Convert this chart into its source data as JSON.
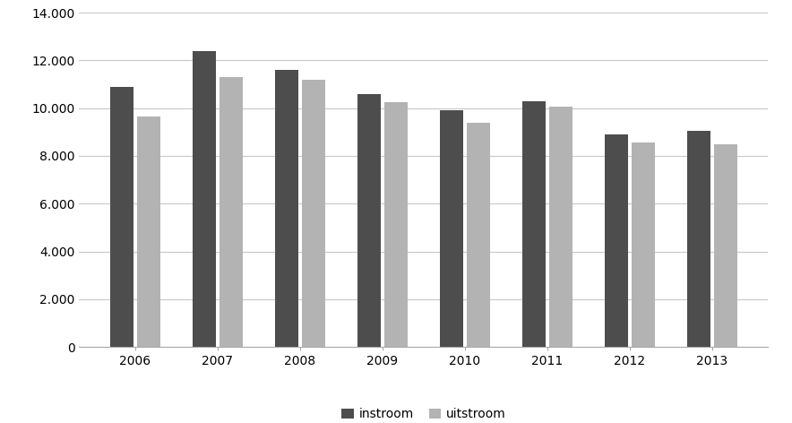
{
  "years": [
    "2006",
    "2007",
    "2008",
    "2009",
    "2010",
    "2011",
    "2012",
    "2013"
  ],
  "instroom": [
    10900,
    12400,
    11600,
    10600,
    9900,
    10300,
    8900,
    9050
  ],
  "uitstroom": [
    9650,
    11300,
    11200,
    10250,
    9400,
    10050,
    8550,
    8500
  ],
  "instroom_color": "#4d4d4d",
  "uitstroom_color": "#b3b3b3",
  "ylim": [
    0,
    14000
  ],
  "yticks": [
    0,
    2000,
    4000,
    6000,
    8000,
    10000,
    12000,
    14000
  ],
  "bar_width": 0.28,
  "legend_labels": [
    "instroom",
    "uitstroom"
  ],
  "background_color": "#ffffff",
  "grid_color": "#c8c8c8",
  "figsize": [
    8.84,
    4.72
  ],
  "dpi": 100
}
